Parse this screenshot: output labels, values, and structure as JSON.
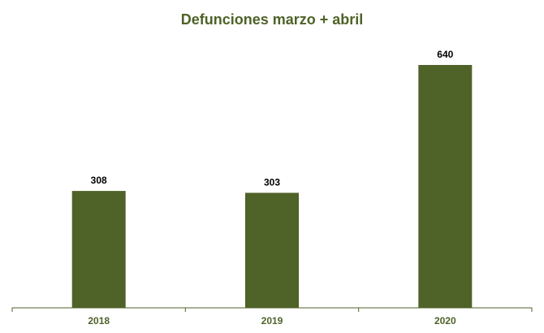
{
  "chart_data": {
    "type": "bar",
    "title": "Defunciones marzo + abril",
    "categories": [
      "2018",
      "2019",
      "2020"
    ],
    "values": [
      308,
      303,
      640
    ],
    "data_labels": [
      "308",
      "303",
      "640"
    ],
    "xlabel": "",
    "ylabel": "",
    "ylim": [
      0,
      700
    ],
    "grid": false,
    "legend": "none",
    "colors": {
      "bar": "#4f6228",
      "title": "#4f6228",
      "tick_label": "#4f6228",
      "axis": "#4f6228",
      "data_label": "#000000"
    }
  }
}
